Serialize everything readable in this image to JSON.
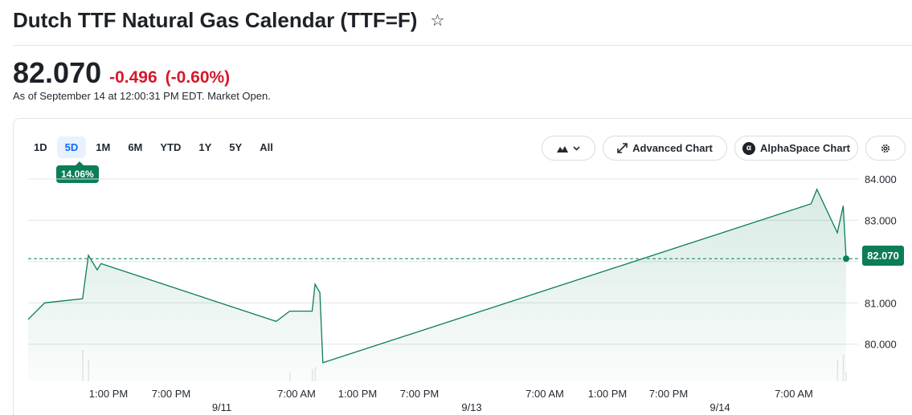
{
  "header": {
    "title": "Dutch TTF Natural Gas Calendar (TTF=F)",
    "star_icon": "☆"
  },
  "quote": {
    "price": "82.070",
    "change": "-0.496",
    "change_pct": "(-0.60%)",
    "as_of": "As of September 14 at 12:00:31 PM EDT. Market Open."
  },
  "ranges": [
    "1D",
    "5D",
    "1M",
    "6M",
    "YTD",
    "1Y",
    "5Y",
    "All"
  ],
  "active_range": "5D",
  "range_change_badge": "14.06%",
  "toolbar": {
    "chart_type_icon": "mountain-chart-icon",
    "advanced_label": "Advanced Chart",
    "alpha_label": "AlphaSpace Chart",
    "alpha_icon_text": "α",
    "settings_icon": "gear-icon"
  },
  "colors": {
    "line": "#0b7d59",
    "area": "#0b7d59",
    "negative": "#d6182b",
    "active_tab": "#0f69ff"
  },
  "chart_data": {
    "type": "area",
    "last_value": 82.07,
    "last_value_label": "82.070",
    "ylim": [
      79.1,
      84.35
    ],
    "yticks": [
      80,
      81,
      82,
      83,
      84
    ],
    "ytick_labels": [
      "80.000",
      "81.000",
      "82.000",
      "83.000",
      "84.000"
    ],
    "grid": true,
    "x_tick_labels": [
      "1:00 PM",
      "7:00 PM",
      "7:00 AM",
      "1:00 PM",
      "7:00 PM",
      "7:00 AM",
      "1:00 PM",
      "7:00 PM",
      "7:00 AM"
    ],
    "x_date_labels": [
      "9/11",
      "9/13",
      "9/14"
    ],
    "series": [
      {
        "points": [
          [
            0,
            80.6
          ],
          [
            1.7,
            81.0
          ],
          [
            5.6,
            81.1
          ],
          [
            6.2,
            82.15
          ],
          [
            7.1,
            81.8
          ],
          [
            7.5,
            81.95
          ],
          [
            25.5,
            80.55
          ],
          [
            26.9,
            80.8
          ],
          [
            28.8,
            80.8
          ],
          [
            29.2,
            80.8
          ],
          [
            29.5,
            81.45
          ],
          [
            30.0,
            81.25
          ],
          [
            30.3,
            79.55
          ],
          [
            80.5,
            83.4
          ],
          [
            81.1,
            83.75
          ],
          [
            83.2,
            82.7
          ],
          [
            83.8,
            83.35
          ],
          [
            84.1,
            82.07
          ]
        ]
      }
    ],
    "volume": [
      [
        5.6,
        0.65
      ],
      [
        6.2,
        0.45
      ],
      [
        26.9,
        0.2
      ],
      [
        29.2,
        0.25
      ],
      [
        29.5,
        0.3
      ],
      [
        83.2,
        0.45
      ],
      [
        83.8,
        0.55
      ],
      [
        84.1,
        0.2
      ]
    ]
  }
}
